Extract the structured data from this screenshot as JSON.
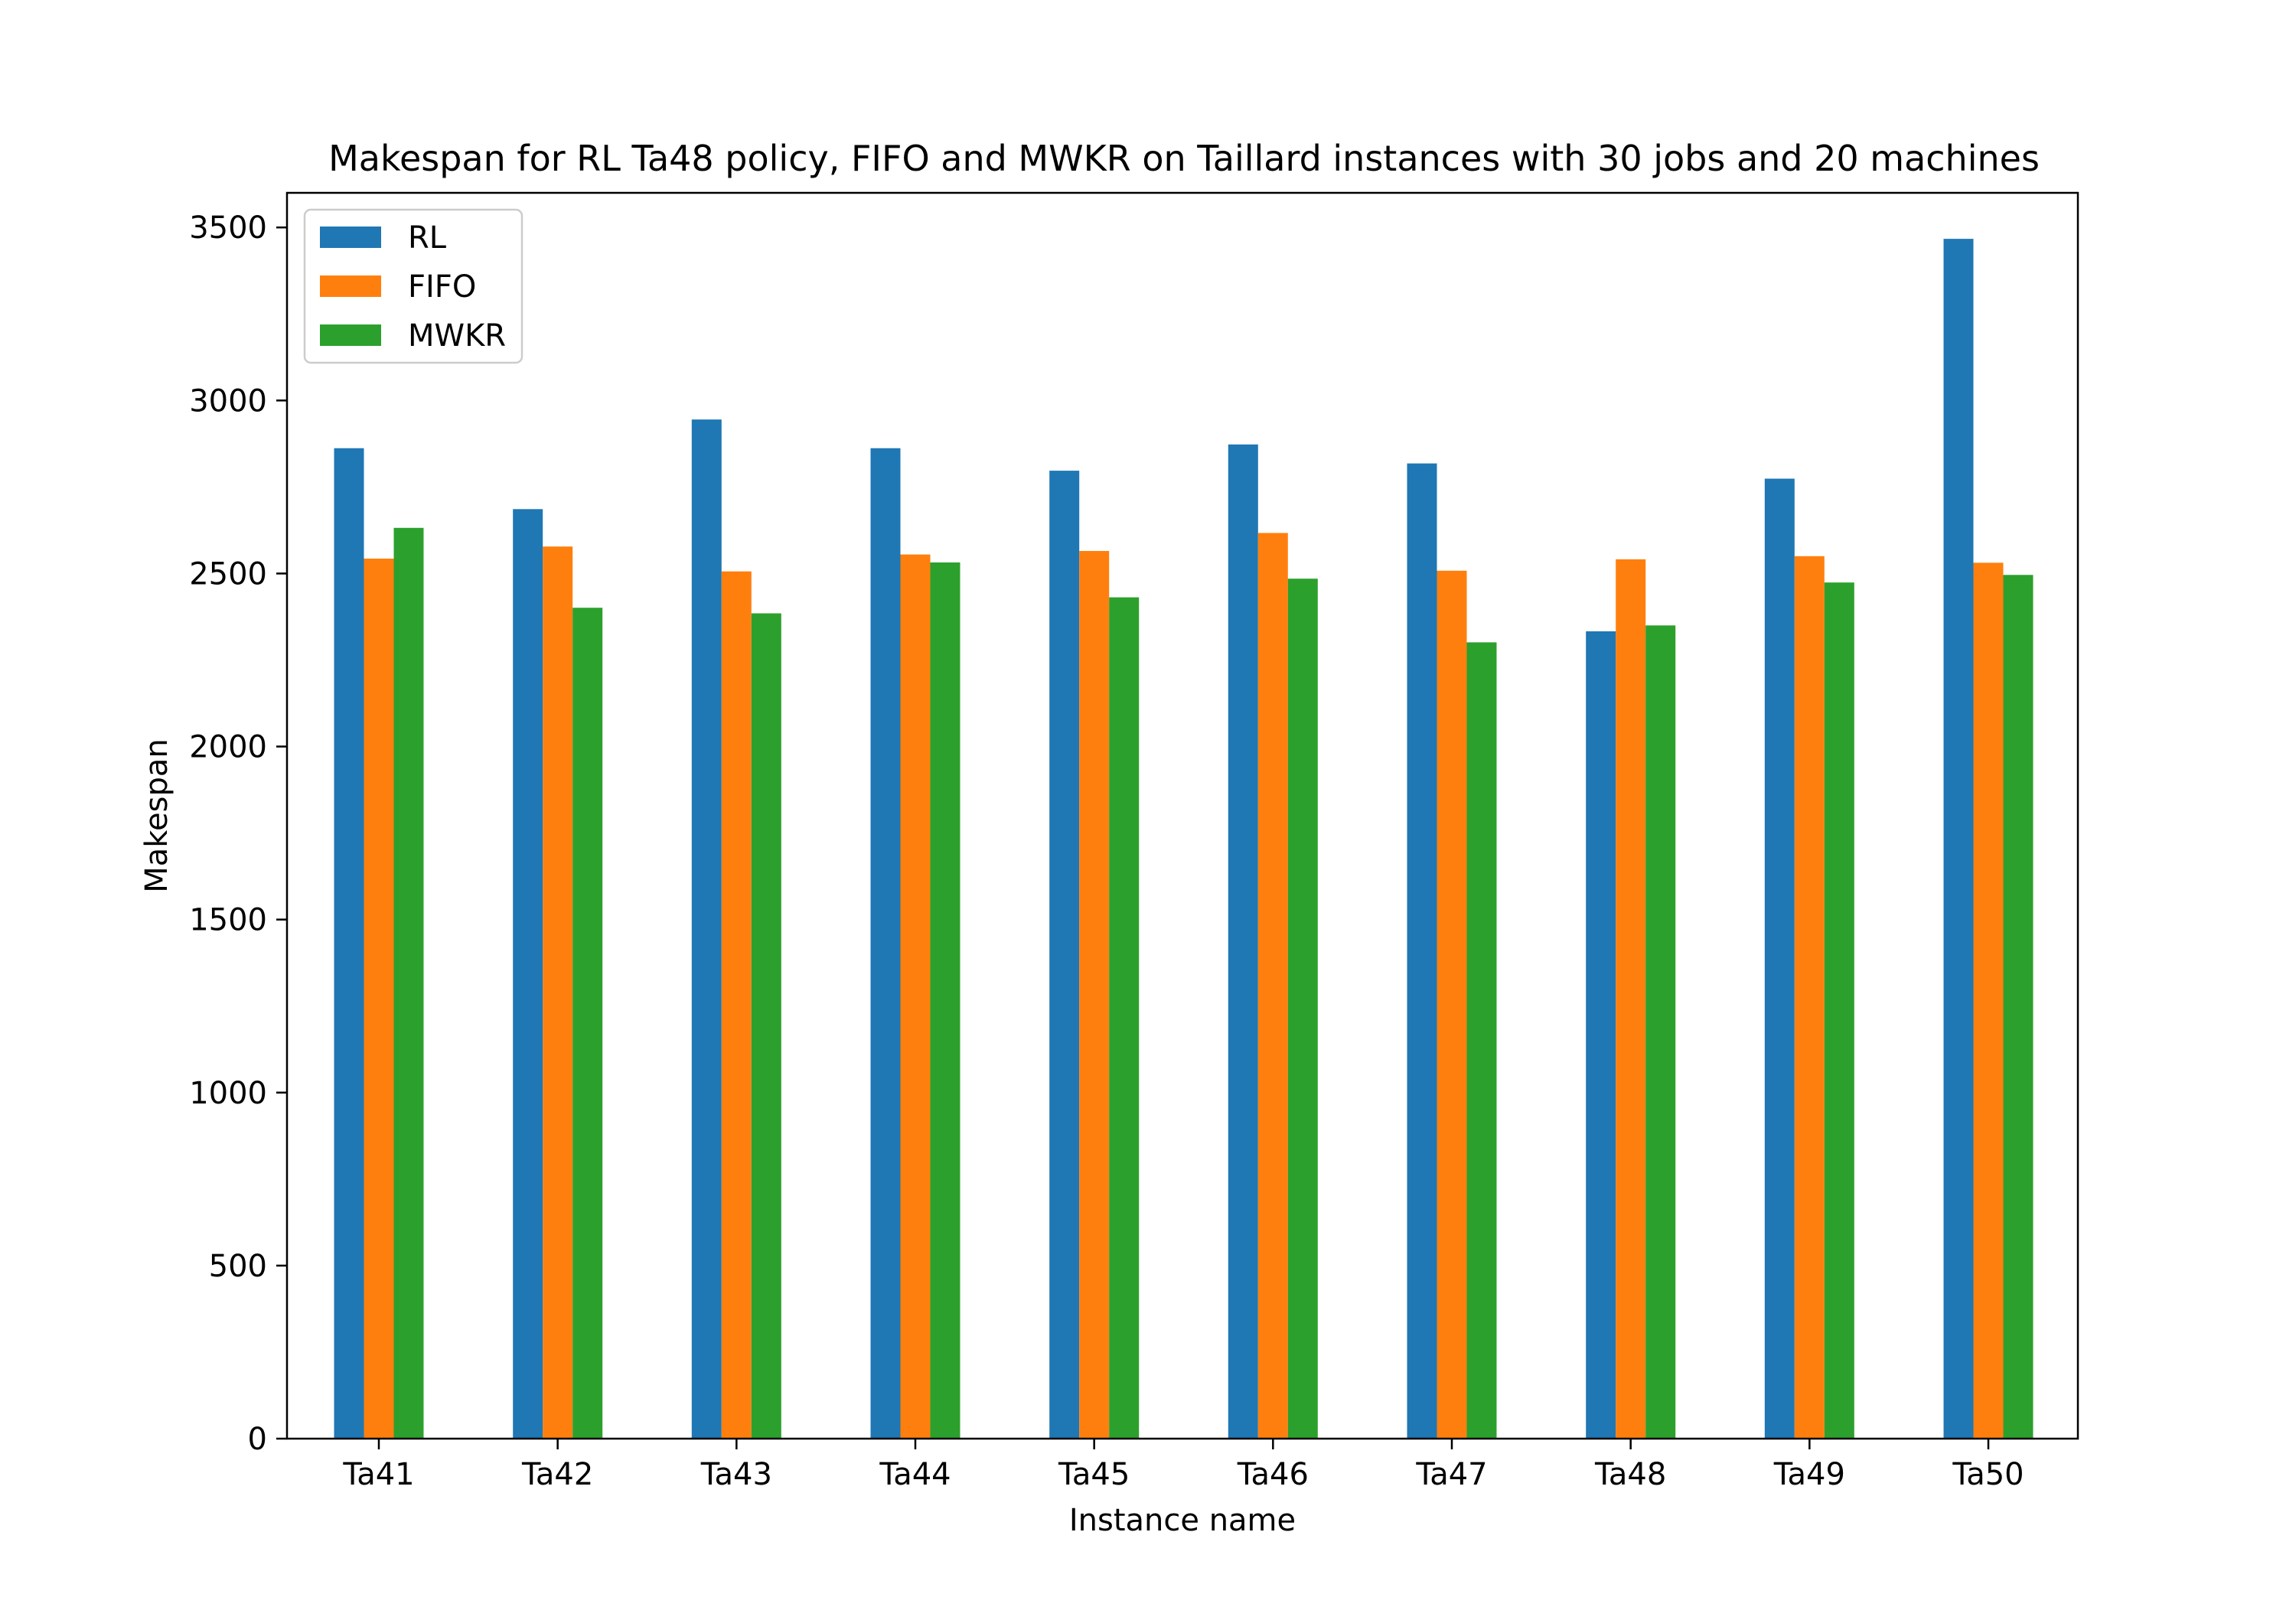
{
  "chart_data": {
    "type": "bar",
    "title": "Makespan for RL Ta48 policy, FIFO and MWKR on Taillard instances with 30 jobs and 20 machines",
    "xlabel": "Instance name",
    "ylabel": "Makespan",
    "categories": [
      "Ta41",
      "Ta42",
      "Ta43",
      "Ta44",
      "Ta45",
      "Ta46",
      "Ta47",
      "Ta48",
      "Ta49",
      "Ta50"
    ],
    "series": [
      {
        "name": "RL",
        "color": "#1f77b4",
        "values": [
          2862,
          2686,
          2945,
          2862,
          2797,
          2873,
          2818,
          2333,
          2774,
          3467
        ]
      },
      {
        "name": "FIFO",
        "color": "#ff7f0e",
        "values": [
          2543,
          2578,
          2506,
          2555,
          2565,
          2617,
          2508,
          2541,
          2550,
          2531
        ]
      },
      {
        "name": "MWKR",
        "color": "#2ca02c",
        "values": [
          2632,
          2401,
          2385,
          2532,
          2431,
          2485,
          2301,
          2350,
          2474,
          2496
        ]
      }
    ],
    "ylim": [
      0,
      3600
    ],
    "yticks": [
      0,
      500,
      1000,
      1500,
      2000,
      2500,
      3000,
      3500
    ],
    "grid": false,
    "legend": "top-left"
  }
}
